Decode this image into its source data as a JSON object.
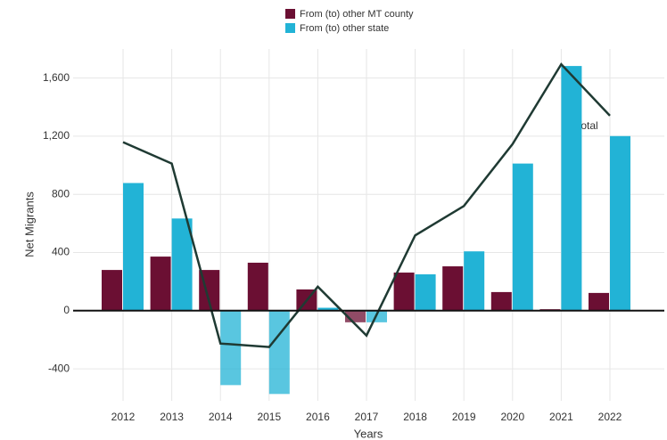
{
  "chart_data": {
    "type": "bar",
    "categories": [
      "2012",
      "2013",
      "2014",
      "2015",
      "2016",
      "2017",
      "2018",
      "2019",
      "2020",
      "2021",
      "2022"
    ],
    "series": [
      {
        "name": "From (to) other MT county",
        "color": "#6b0f33",
        "values": [
          280,
          372,
          280,
          330,
          146,
          -80,
          262,
          305,
          128,
          10,
          122
        ]
      },
      {
        "name": "From (to) other state",
        "color": "#22b3d6",
        "values": [
          878,
          634,
          -512,
          -573,
          20,
          -80,
          250,
          408,
          1012,
          1683,
          1201
        ]
      },
      {
        "name": "Total",
        "color": "#1f3a33",
        "type": "line",
        "values": [
          1159,
          1012,
          -226,
          -250,
          165,
          -171,
          518,
          720,
          1146,
          1695,
          1341
        ]
      }
    ],
    "annotation": "Total",
    "xlabel": "Years",
    "ylabel": "Net Migrants",
    "ylim": [
      -620,
      1800
    ],
    "yticks": [
      -400,
      0,
      400,
      800,
      {
        "value": 1200,
        "label": "1,200"
      },
      {
        "value": 1600,
        "label": "1,600"
      }
    ],
    "grid": true
  }
}
